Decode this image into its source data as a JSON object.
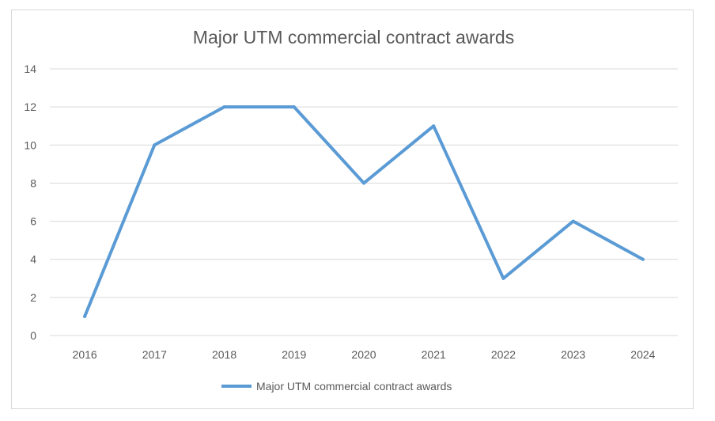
{
  "chart_data": {
    "type": "line",
    "title": "Major UTM commercial contract awards",
    "xlabel": "",
    "ylabel": "",
    "categories": [
      "2016",
      "2017",
      "2018",
      "2019",
      "2020",
      "2021",
      "2022",
      "2023",
      "2024"
    ],
    "series": [
      {
        "name": "Major UTM commercial contract awards",
        "values": [
          1,
          10,
          12,
          12,
          8,
          11,
          3,
          6,
          4
        ],
        "color": "#5b9bd5"
      }
    ],
    "ylim": [
      0,
      14
    ],
    "yticks": [
      0,
      2,
      4,
      6,
      8,
      10,
      12,
      14
    ],
    "grid": true,
    "legend_position": "bottom",
    "gridline_color": "#d9d9d9",
    "text_color": "#595959"
  }
}
